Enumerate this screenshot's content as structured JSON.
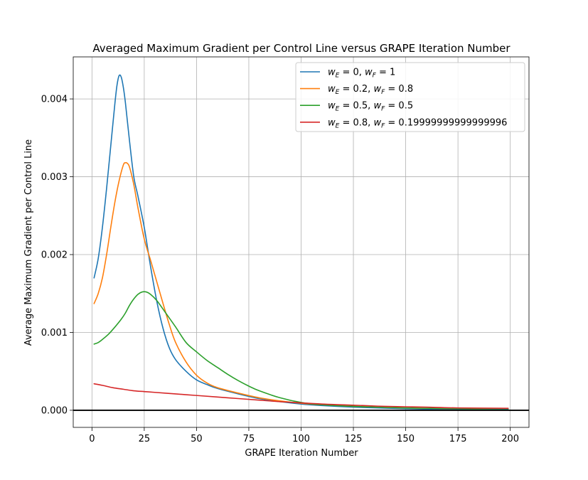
{
  "chart_data": {
    "type": "line",
    "title": "Averaged Maximum Gradient per Control Line versus GRAPE Iteration Number",
    "xlabel": "GRAPE Iteration Number",
    "ylabel": "Average Maximum Gradient per Control Line",
    "xlim": [
      -8.95,
      208.95
    ],
    "ylim": [
      -0.00022,
      0.00454
    ],
    "xticks": [
      {
        "value": 0,
        "label": "0"
      },
      {
        "value": 25,
        "label": "25"
      },
      {
        "value": 50,
        "label": "50"
      },
      {
        "value": 75,
        "label": "75"
      },
      {
        "value": 100,
        "label": "100"
      },
      {
        "value": 125,
        "label": "125"
      },
      {
        "value": 150,
        "label": "150"
      },
      {
        "value": 175,
        "label": "175"
      },
      {
        "value": 200,
        "label": "200"
      }
    ],
    "yticks": [
      {
        "value": 0,
        "label": "0.000"
      },
      {
        "value": 0.001,
        "label": "0.001"
      },
      {
        "value": 0.002,
        "label": "0.002"
      },
      {
        "value": 0.003,
        "label": "0.003"
      },
      {
        "value": 0.004,
        "label": "0.004"
      }
    ],
    "grid": true,
    "legend_position": "upper-right",
    "reference_line_y": 0,
    "series": [
      {
        "label_html": "<tspan font-style='italic'>w</tspan><tspan font-style='italic' font-size='9' dy='3'>E</tspan><tspan dy='-3'> = 0, </tspan><tspan font-style='italic'>w</tspan><tspan font-style='italic' font-size='9' dy='3'>F</tspan><tspan dy='-3'> = 1</tspan>",
        "label_parts": [
          "w",
          "E",
          " = 0, ",
          "w",
          "F",
          " = 1"
        ],
        "color": "#1f77b4",
        "points": [
          [
            1,
            0.0017
          ],
          [
            3,
            0.00195
          ],
          [
            5,
            0.00235
          ],
          [
            7,
            0.00285
          ],
          [
            9,
            0.0034
          ],
          [
            11,
            0.00395
          ],
          [
            12,
            0.00418
          ],
          [
            13,
            0.0043
          ],
          [
            14,
            0.00428
          ],
          [
            15,
            0.00415
          ],
          [
            16,
            0.00395
          ],
          [
            18,
            0.00345
          ],
          [
            20,
            0.003
          ],
          [
            22,
            0.00275
          ],
          [
            25,
            0.00235
          ],
          [
            28,
            0.00185
          ],
          [
            31,
            0.0014
          ],
          [
            34,
            0.00105
          ],
          [
            37,
            0.0008
          ],
          [
            40,
            0.00065
          ],
          [
            45,
            0.0005
          ],
          [
            50,
            0.00039
          ],
          [
            55,
            0.00033
          ],
          [
            60,
            0.00028
          ],
          [
            70,
            0.00021
          ],
          [
            80,
            0.00015
          ],
          [
            90,
            0.00011
          ],
          [
            100,
            8e-05
          ],
          [
            110,
            6e-05
          ],
          [
            125,
            4e-05
          ],
          [
            150,
            2e-05
          ],
          [
            175,
            1e-05
          ],
          [
            199,
            1e-05
          ]
        ]
      },
      {
        "label_html": "<tspan font-style='italic'>w</tspan><tspan font-style='italic' font-size='9' dy='3'>E</tspan><tspan dy='-3'> = 0.2, </tspan><tspan font-style='italic'>w</tspan><tspan font-style='italic' font-size='9' dy='3'>F</tspan><tspan dy='-3'> = 0.8</tspan>",
        "label_parts": [
          "w",
          "E",
          " = 0.2, ",
          "w",
          "F",
          " = 0.8"
        ],
        "color": "#ff7f0e",
        "points": [
          [
            1,
            0.00137
          ],
          [
            3,
            0.0015
          ],
          [
            5,
            0.0017
          ],
          [
            7,
            0.002
          ],
          [
            9,
            0.00235
          ],
          [
            11,
            0.00268
          ],
          [
            13,
            0.00295
          ],
          [
            15,
            0.00315
          ],
          [
            16,
            0.00318
          ],
          [
            17,
            0.00317
          ],
          [
            18,
            0.00312
          ],
          [
            20,
            0.0029
          ],
          [
            22,
            0.0026
          ],
          [
            25,
            0.0022
          ],
          [
            28,
            0.00193
          ],
          [
            31,
            0.00165
          ],
          [
            34,
            0.00137
          ],
          [
            37,
            0.0011
          ],
          [
            40,
            0.00087
          ],
          [
            45,
            0.00062
          ],
          [
            50,
            0.00045
          ],
          [
            55,
            0.00035
          ],
          [
            60,
            0.00029
          ],
          [
            70,
            0.00022
          ],
          [
            80,
            0.00016
          ],
          [
            90,
            0.00012
          ],
          [
            100,
            9e-05
          ],
          [
            110,
            7e-05
          ],
          [
            125,
            5e-05
          ],
          [
            150,
            3e-05
          ],
          [
            175,
            2e-05
          ],
          [
            199,
            2e-05
          ]
        ]
      },
      {
        "label_html": "<tspan font-style='italic'>w</tspan><tspan font-style='italic' font-size='9' dy='3'>E</tspan><tspan dy='-3'> = 0.5, </tspan><tspan font-style='italic'>w</tspan><tspan font-style='italic' font-size='9' dy='3'>F</tspan><tspan dy='-3'> = 0.5</tspan>",
        "label_parts": [
          "w",
          "E",
          " = 0.5, ",
          "w",
          "F",
          " = 0.5"
        ],
        "color": "#2ca02c",
        "points": [
          [
            1,
            0.00085
          ],
          [
            3,
            0.00087
          ],
          [
            5,
            0.00091
          ],
          [
            8,
            0.00098
          ],
          [
            11,
            0.00107
          ],
          [
            14,
            0.00117
          ],
          [
            16,
            0.00125
          ],
          [
            18,
            0.00135
          ],
          [
            20,
            0.00143
          ],
          [
            22,
            0.00149
          ],
          [
            24,
            0.00152
          ],
          [
            26,
            0.00152
          ],
          [
            28,
            0.00149
          ],
          [
            31,
            0.00141
          ],
          [
            35,
            0.00126
          ],
          [
            40,
            0.00107
          ],
          [
            45,
            0.00087
          ],
          [
            50,
            0.00075
          ],
          [
            55,
            0.00064
          ],
          [
            60,
            0.00055
          ],
          [
            65,
            0.00046
          ],
          [
            70,
            0.00038
          ],
          [
            75,
            0.00031
          ],
          [
            80,
            0.00025
          ],
          [
            90,
            0.00016
          ],
          [
            100,
            0.0001
          ],
          [
            110,
            7e-05
          ],
          [
            125,
            5e-05
          ],
          [
            150,
            3e-05
          ],
          [
            175,
            2e-05
          ],
          [
            199,
            2e-05
          ]
        ]
      },
      {
        "label_html": "<tspan font-style='italic'>w</tspan><tspan font-style='italic' font-size='9' dy='3'>E</tspan><tspan dy='-3'> = 0.8, </tspan><tspan font-style='italic'>w</tspan><tspan font-style='italic' font-size='9' dy='3'>F</tspan><tspan dy='-3'> = 0.19999999999999996</tspan>",
        "label_parts": [
          "w",
          "E",
          " = 0.8, ",
          "w",
          "F",
          " = 0.19999999999999996"
        ],
        "color": "#d62728",
        "points": [
          [
            1,
            0.00034
          ],
          [
            5,
            0.00032
          ],
          [
            10,
            0.00029
          ],
          [
            15,
            0.00027
          ],
          [
            20,
            0.00025
          ],
          [
            25,
            0.00024
          ],
          [
            30,
            0.00023
          ],
          [
            40,
            0.00021
          ],
          [
            50,
            0.00019
          ],
          [
            60,
            0.00017
          ],
          [
            70,
            0.00015
          ],
          [
            80,
            0.00013
          ],
          [
            90,
            0.00011
          ],
          [
            100,
            9.5e-05
          ],
          [
            110,
            8e-05
          ],
          [
            120,
            7e-05
          ],
          [
            130,
            6e-05
          ],
          [
            140,
            5e-05
          ],
          [
            150,
            4.5e-05
          ],
          [
            160,
            4e-05
          ],
          [
            175,
            3e-05
          ],
          [
            199,
            2.5e-05
          ]
        ]
      }
    ]
  }
}
